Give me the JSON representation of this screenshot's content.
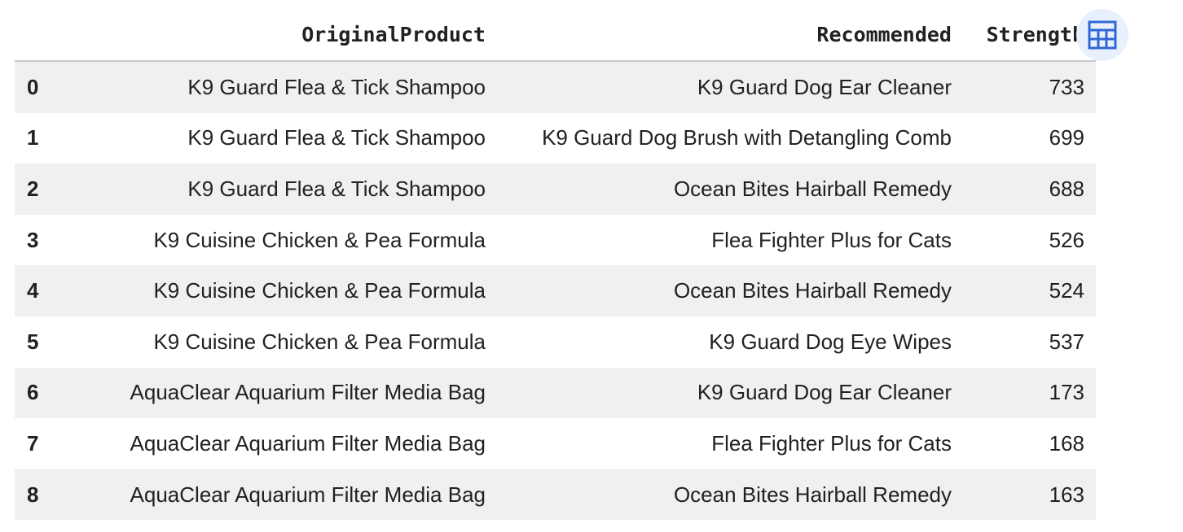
{
  "table": {
    "columns": [
      "",
      "OriginalProduct",
      "Recommended",
      "Strength"
    ],
    "rows": [
      {
        "index": "0",
        "original": "K9 Guard Flea & Tick Shampoo",
        "recommended": "K9 Guard Dog Ear Cleaner",
        "strength": "733"
      },
      {
        "index": "1",
        "original": "K9 Guard Flea & Tick Shampoo",
        "recommended": "K9 Guard Dog Brush with Detangling Comb",
        "strength": "699"
      },
      {
        "index": "2",
        "original": "K9 Guard Flea & Tick Shampoo",
        "recommended": "Ocean Bites Hairball Remedy",
        "strength": "688"
      },
      {
        "index": "3",
        "original": "K9 Cuisine Chicken & Pea Formula",
        "recommended": "Flea Fighter Plus for Cats",
        "strength": "526"
      },
      {
        "index": "4",
        "original": "K9 Cuisine Chicken & Pea Formula",
        "recommended": "Ocean Bites Hairball Remedy",
        "strength": "524"
      },
      {
        "index": "5",
        "original": "K9 Cuisine Chicken & Pea Formula",
        "recommended": "K9 Guard Dog Eye Wipes",
        "strength": "537"
      },
      {
        "index": "6",
        "original": "AquaClear Aquarium Filter Media Bag",
        "recommended": "K9 Guard Dog Ear Cleaner",
        "strength": "173"
      },
      {
        "index": "7",
        "original": "AquaClear Aquarium Filter Media Bag",
        "recommended": "Flea Fighter Plus for Cats",
        "strength": "168"
      },
      {
        "index": "8",
        "original": "AquaClear Aquarium Filter Media Bag",
        "recommended": "Ocean Bites Hairball Remedy",
        "strength": "163"
      }
    ]
  },
  "toolbar": {
    "icon": "table-icon",
    "accent": "#3367d6",
    "bg": "#e8f0fe"
  }
}
